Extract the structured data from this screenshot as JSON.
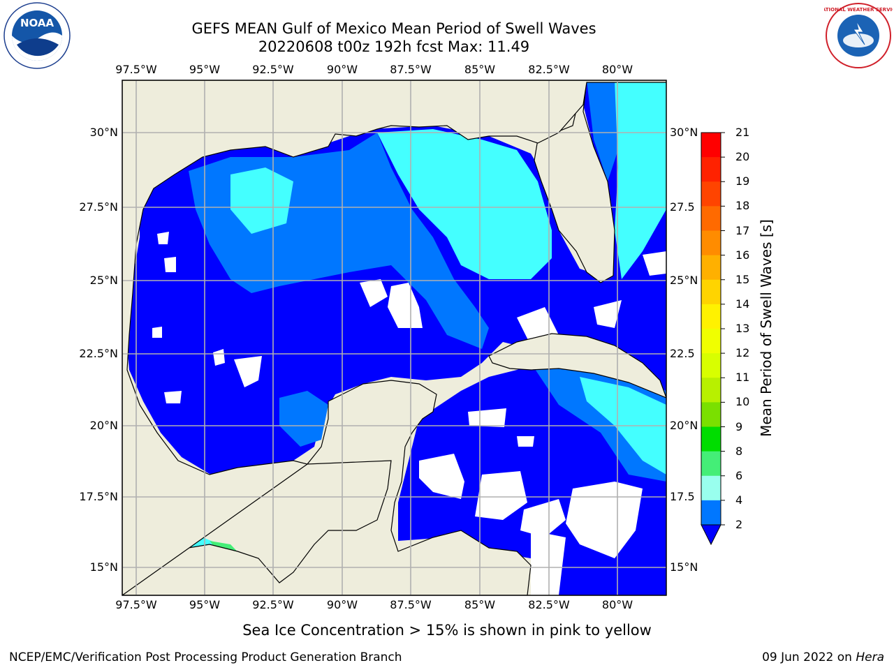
{
  "title_line1": "GEFS MEAN Gulf of Mexico Mean Period of Swell Waves",
  "title_line2": "20220608 t00z 192h fcst   Max: 11.49",
  "lon_ticks": [
    "97.5°W",
    "95°W",
    "92.5°W",
    "90°W",
    "87.5°W",
    "85°W",
    "82.5°W",
    "80°W"
  ],
  "lat_ticks_left": [
    "30°N",
    "27.5°N",
    "25°N",
    "22.5°N",
    "20°N",
    "17.5°N",
    "15°N"
  ],
  "lat_ticks_right": [
    "30°N",
    "27.5",
    "25°N",
    "22.5",
    "20°N",
    "17.5",
    "15°N"
  ],
  "colorbar": {
    "label": "Mean Period of Swell Waves [s]",
    "ticks": [
      "21",
      "20",
      "19",
      "18",
      "17",
      "16",
      "15",
      "14",
      "13",
      "12",
      "11",
      "10",
      "9",
      "8",
      "6",
      "4",
      "2"
    ],
    "colors": [
      "#ff0000",
      "#ff2200",
      "#ff4400",
      "#ff6a00",
      "#ff8c00",
      "#ffb000",
      "#ffd400",
      "#fff200",
      "#f0ff00",
      "#d8ff00",
      "#b8f000",
      "#7ae000",
      "#00dd00",
      "#44ee77",
      "#99ffee",
      "#44ffff",
      "#00eaff",
      "#0077ff",
      "#0000ff"
    ]
  },
  "caption": "Sea Ice Concentration > 15% is shown in pink to yellow",
  "footer_left": "NCEP/EMC/Verification Post Processing Product Generation Branch",
  "footer_date": "09 Jun 2022 on ",
  "footer_host": "Hera",
  "logos": {
    "left_text": "NOAA",
    "right_text": "NATIONAL WEATHER SERVICE"
  },
  "map_colors": {
    "land": "#eeeddc",
    "ocean_low": "#0000ff",
    "ocean_mid": "#0077ff",
    "ocean_high": "#44ffff",
    "ocean_higher": "#00eaff",
    "grid": "#b0b0b0"
  }
}
